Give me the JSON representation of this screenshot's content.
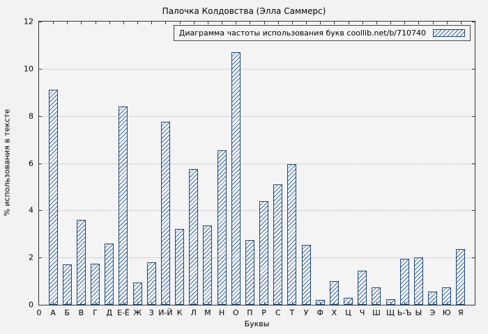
{
  "colors": {
    "bar_border": "#1c4878",
    "hatch": "#3c6db0",
    "grid": "#b5b5b5",
    "axis": "#333333"
  },
  "chart_data": {
    "type": "bar",
    "title": "Палочка Колдовства (Элла Саммерс)",
    "legend": "Диаграмма частоты использования букв coollib.net/b/710740",
    "legend_position": "top-right",
    "xlabel": "Буквы",
    "ylabel": "% использования в тексте",
    "ylim": [
      0,
      12
    ],
    "yticks": [
      0,
      2,
      4,
      6,
      8,
      10,
      12
    ],
    "origin_tick_label": "0",
    "grid": true,
    "categories": [
      "А",
      "Б",
      "В",
      "Г",
      "Д",
      "Е-Ё",
      "Ж",
      "З",
      "И-Й",
      "К",
      "Л",
      "М",
      "Н",
      "О",
      "П",
      "Р",
      "С",
      "Т",
      "У",
      "Ф",
      "Х",
      "Ц",
      "Ч",
      "Ш",
      "Щ",
      "Ь-Ъ",
      "Ы",
      "Э",
      "Ю",
      "Я"
    ],
    "values": [
      9.1,
      1.7,
      3.6,
      1.75,
      2.6,
      8.4,
      0.95,
      1.8,
      7.75,
      3.2,
      5.75,
      3.35,
      6.55,
      10.7,
      2.75,
      4.4,
      5.1,
      5.95,
      2.55,
      0.2,
      1.0,
      0.3,
      1.45,
      0.75,
      0.25,
      1.95,
      2.0,
      0.55,
      0.75,
      2.35
    ]
  }
}
